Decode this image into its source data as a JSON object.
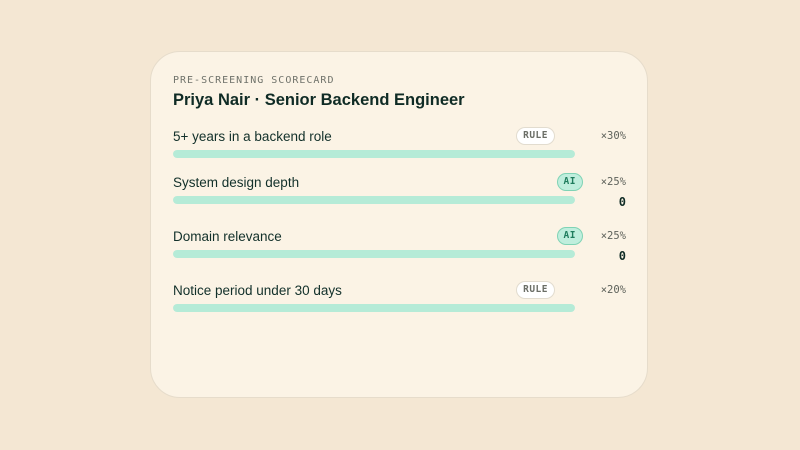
{
  "scorecard": {
    "eyebrow": "PRE-SCREENING SCORECARD",
    "title": "Priya Nair · Senior Backend Engineer",
    "rows": [
      {
        "label": "5+ years in a backend role",
        "badge": "RULE",
        "weight": "×30%",
        "score": "",
        "fill_percent": 100
      },
      {
        "label": "System design depth",
        "badge": "AI",
        "weight": "×25%",
        "score": "0",
        "fill_percent": 100
      },
      {
        "label": "Domain relevance",
        "badge": "AI",
        "weight": "×25%",
        "score": "0",
        "fill_percent": 100
      },
      {
        "label": "Notice period under 30 days",
        "badge": "RULE",
        "weight": "×20%",
        "score": "",
        "fill_percent": 100
      }
    ]
  },
  "colors": {
    "page_background": "#f4e7d3",
    "card_background": "#fbf3e5",
    "bar_fill": "#b5ebd7",
    "ai_badge": "#bfeedd",
    "rule_badge": "#ffffff"
  }
}
